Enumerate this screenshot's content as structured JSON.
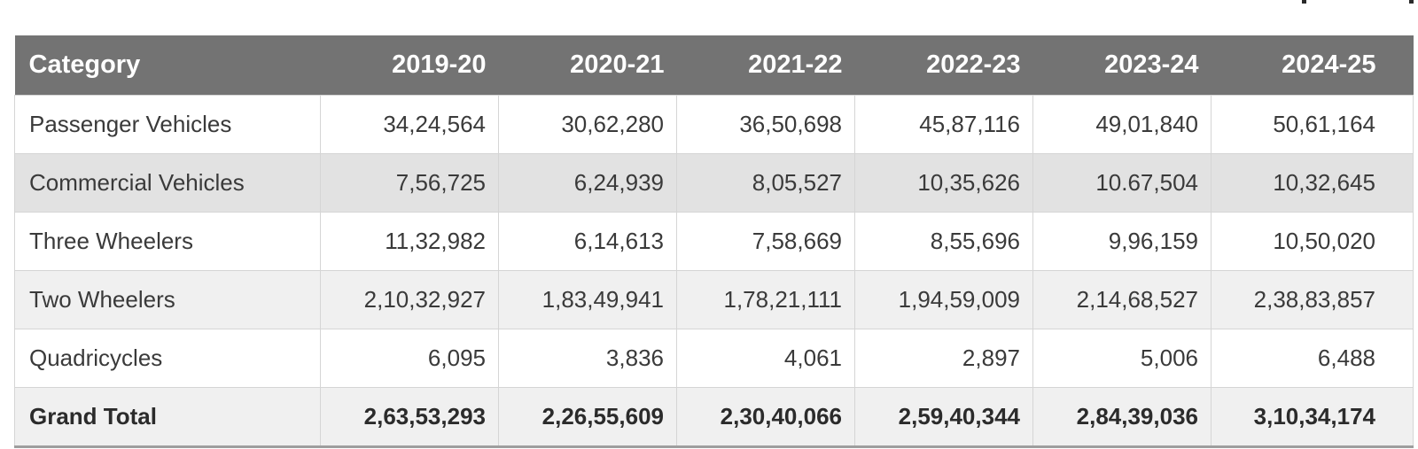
{
  "colors": {
    "header_bg": "#737373",
    "header_text": "#ffffff",
    "body_text": "#3a3a3a",
    "total_text": "#2b2b2b",
    "row_shade_dark": "#e2e2e2",
    "row_shade_light": "#f0f0f0",
    "grid_line": "#d5d5d5",
    "bottom_border": "#9e9e9e"
  },
  "table": {
    "header": {
      "category_label": "Category",
      "year_labels": [
        "2019-20",
        "2020-21",
        "2021-22",
        "2022-23",
        "2023-24",
        "2024-25"
      ]
    },
    "rows": [
      {
        "category": "Passenger Vehicles",
        "values": [
          "34,24,564",
          "30,62,280",
          "36,50,698",
          "45,87,116",
          "49,01,840",
          "50,61,164"
        ],
        "shade": "white",
        "bold": false
      },
      {
        "category": "Commercial Vehicles",
        "values": [
          "7,56,725",
          "6,24,939",
          "8,05,527",
          "10,35,626",
          "10.67,504",
          "10,32,645"
        ],
        "shade": "dark",
        "bold": false
      },
      {
        "category": "Three Wheelers",
        "values": [
          "11,32,982",
          "6,14,613",
          "7,58,669",
          "8,55,696",
          "9,96,159",
          "10,50,020"
        ],
        "shade": "white",
        "bold": false
      },
      {
        "category": "Two Wheelers",
        "values": [
          "2,10,32,927",
          "1,83,49,941",
          "1,78,21,111",
          "1,94,59,009",
          "2,14,68,527",
          "2,38,83,857"
        ],
        "shade": "light",
        "bold": false
      },
      {
        "category": "Quadricycles",
        "values": [
          "6,095",
          "3,836",
          "4,061",
          "2,897",
          "5,006",
          "6,488"
        ],
        "shade": "white",
        "bold": false
      },
      {
        "category": "Grand Total",
        "values": [
          "2,63,53,293",
          "2,26,55,609",
          "2,30,40,066",
          "2,59,40,344",
          "2,84,39,036",
          "3,10,34,174"
        ],
        "shade": "light",
        "bold": true
      }
    ]
  },
  "chart_data": {
    "type": "table",
    "title": "",
    "categories": [
      "2019-20",
      "2020-21",
      "2021-22",
      "2022-23",
      "2023-24",
      "2024-25"
    ],
    "series": [
      {
        "name": "Passenger Vehicles",
        "values": [
          3424564,
          3062280,
          3650698,
          4587116,
          4901840,
          5061164
        ]
      },
      {
        "name": "Commercial Vehicles",
        "values": [
          756725,
          624939,
          805527,
          1035626,
          1067504,
          1032645
        ]
      },
      {
        "name": "Three Wheelers",
        "values": [
          1132982,
          614613,
          758669,
          855696,
          996159,
          1050020
        ]
      },
      {
        "name": "Two Wheelers",
        "values": [
          21032927,
          18349941,
          17821111,
          19459009,
          21468527,
          23883857
        ]
      },
      {
        "name": "Quadricycles",
        "values": [
          6095,
          3836,
          4061,
          2897,
          5006,
          6488
        ]
      },
      {
        "name": "Grand Total",
        "values": [
          26353293,
          22655609,
          23040066,
          25940344,
          28439036,
          31034174
        ]
      }
    ],
    "layout": {
      "first_column_header": "Category",
      "number_format": "indian-grouping",
      "grid": true
    }
  }
}
